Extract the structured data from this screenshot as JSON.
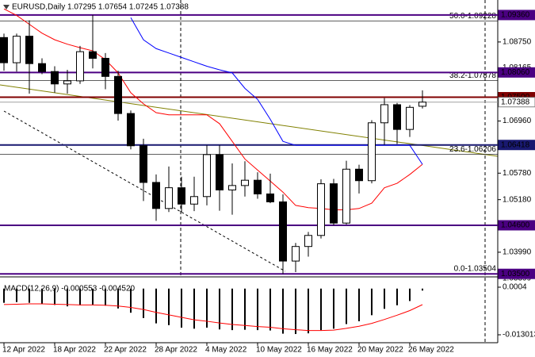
{
  "chart_data": [
    {
      "type": "candlestick",
      "title": "EURUSD,Daily  1.07295 1.07654 1.07245 1.07388",
      "categories": [
        "12 Apr 2022",
        null,
        null,
        null,
        "18 Apr 2022",
        null,
        null,
        null,
        "22 Apr 2022",
        null,
        null,
        null,
        "28 Apr 2022",
        null,
        null,
        null,
        "4 May 2022",
        null,
        null,
        null,
        "10 May 2022",
        null,
        null,
        null,
        "16 May 2022",
        null,
        null,
        null,
        "20 May 2022",
        null,
        null,
        null,
        "26 May 2022",
        null
      ],
      "open": [
        1.0885,
        1.0828,
        1.0888,
        1.0826,
        1.0808,
        1.078,
        1.0787,
        1.0853,
        1.0838,
        1.0797,
        1.0713,
        1.064,
        1.0557,
        1.0498,
        1.0545,
        1.0508,
        1.0525,
        1.062,
        1.054,
        1.055,
        1.0562,
        1.0531,
        1.0513,
        1.0379,
        1.0412,
        1.0437,
        1.0554,
        1.0465,
        1.0587,
        1.0561,
        1.0692,
        1.0733,
        1.0677,
        1.07295
      ],
      "high": [
        1.0894,
        1.0894,
        1.0924,
        1.0838,
        1.082,
        1.0812,
        1.0866,
        1.0936,
        1.085,
        1.081,
        1.072,
        1.0656,
        1.0575,
        1.0593,
        1.057,
        1.057,
        1.0641,
        1.0641,
        1.06,
        1.0605,
        1.058,
        1.0577,
        1.053,
        1.042,
        1.0445,
        1.0564,
        1.0565,
        1.0606,
        1.0597,
        1.0698,
        1.0748,
        1.0737,
        1.0732,
        1.07654
      ],
      "low": [
        1.081,
        1.0808,
        1.0758,
        1.0802,
        1.076,
        1.0758,
        1.078,
        1.0815,
        1.0768,
        1.0697,
        1.0632,
        1.0515,
        1.047,
        1.049,
        1.049,
        1.0492,
        1.0505,
        1.0493,
        1.0484,
        1.0525,
        1.052,
        1.051,
        1.035,
        1.0354,
        1.0389,
        1.043,
        1.046,
        1.0462,
        1.0532,
        1.0555,
        1.0642,
        1.0644,
        1.066,
        1.07245
      ],
      "close": [
        1.0828,
        1.0888,
        1.0826,
        1.0808,
        1.078,
        1.0787,
        1.0853,
        1.0838,
        1.0797,
        1.0713,
        1.064,
        1.0557,
        1.0498,
        1.0545,
        1.0508,
        1.0525,
        1.062,
        1.054,
        1.055,
        1.0562,
        1.0531,
        1.0513,
        1.0379,
        1.0412,
        1.0437,
        1.0554,
        1.0465,
        1.0587,
        1.0561,
        1.0692,
        1.0733,
        1.0677,
        1.0727,
        1.07388
      ],
      "series": [
        {
          "color": "#ff0000",
          "values": [
            1.095,
            1.0935,
            1.0915,
            1.0895,
            1.088,
            1.087,
            1.0862,
            1.0855,
            1.0835,
            1.0805,
            1.076,
            1.0735,
            1.0715,
            1.071,
            1.071,
            1.071,
            1.071,
            1.069,
            1.065,
            1.061,
            1.0585,
            1.056,
            1.0535,
            1.0505,
            1.05,
            1.0498,
            1.0495,
            1.0495,
            1.0498,
            1.051,
            1.0545,
            1.0555,
            1.0575,
            1.0598
          ]
        },
        {
          "color": "#0000ff",
          "values": [
            null,
            null,
            null,
            null,
            null,
            null,
            null,
            null,
            null,
            null,
            1.093,
            1.088,
            1.086,
            1.085,
            1.084,
            1.083,
            1.082,
            1.0812,
            1.0805,
            1.077,
            1.0745,
            1.07,
            1.065,
            1.0641,
            1.0641,
            1.0641,
            1.0641,
            1.0641,
            1.0641,
            1.0641,
            1.0641,
            1.0641,
            1.0641,
            1.0598
          ]
        }
      ],
      "ylim": [
        1.0345,
        1.097
      ],
      "yticks": [
        {
          "value": 1.0875,
          "label": "1.08750"
        },
        {
          "value": 1.08165,
          "label": "1.08165"
        },
        {
          "value": 1.0696,
          "label": "1.06960"
        },
        {
          "value": 1.0578,
          "label": "1.05780"
        },
        {
          "value": 1.0518,
          "label": "1.05180"
        },
        {
          "value": 1.0399,
          "label": "1.03990"
        },
        1.03399
      ],
      "levels": [
        {
          "value": 1.0936,
          "label": "1.09360",
          "color": "#4b0082"
        },
        {
          "value": 1.0806,
          "label": "1.08060",
          "color": "#4b0082"
        },
        {
          "value": 1.075,
          "label": "1.07500",
          "color": "#800000"
        },
        {
          "value": 1.07388,
          "label": "1.07388",
          "color": "#c0c0c0"
        },
        {
          "value": 1.06418,
          "label": "1.06418",
          "color": "#191970"
        },
        {
          "value": 1.046,
          "label": "1.04600",
          "color": "#4b0082"
        },
        {
          "value": 1.035,
          "label": "1.03500",
          "color": "#4b0082"
        }
      ],
      "annotations": [
        {
          "value": 1.09228,
          "label": "50.0-1.09228"
        },
        {
          "value": 1.07878,
          "label": "38.2-1.07878"
        },
        {
          "value": 1.06206,
          "label": "23.6-1.06206"
        },
        {
          "value": 1.03504,
          "label": "0.0-1.03504"
        }
      ]
    },
    {
      "type": "bar",
      "title": "MACD(12,26,9) -0.000553 -0.004520",
      "color": "#000000",
      "values": [
        -0.004,
        -0.0038,
        -0.004,
        -0.0042,
        -0.0046,
        -0.005,
        -0.0047,
        -0.0045,
        -0.0048,
        -0.0056,
        -0.0068,
        -0.0083,
        -0.0098,
        -0.0103,
        -0.011,
        -0.0113,
        -0.011,
        -0.0115,
        -0.0117,
        -0.0116,
        -0.0117,
        -0.0118,
        -0.0127,
        -0.0128,
        -0.0126,
        -0.0117,
        -0.0113,
        -0.01,
        -0.0092,
        -0.0075,
        -0.0057,
        -0.0047,
        -0.0035,
        -0.000553
      ],
      "series": [
        {
          "color": "#ff0000",
          "values": [
            -0.0045,
            -0.0044,
            -0.0043,
            -0.0043,
            -0.0044,
            -0.0045,
            -0.0046,
            -0.0046,
            -0.0047,
            -0.0049,
            -0.0053,
            -0.0059,
            -0.0067,
            -0.0074,
            -0.0081,
            -0.0088,
            -0.0092,
            -0.0097,
            -0.0101,
            -0.0104,
            -0.0107,
            -0.0109,
            -0.0113,
            -0.0116,
            -0.0118,
            -0.0118,
            -0.0117,
            -0.0112,
            -0.0106,
            -0.0098,
            -0.0087,
            -0.0075,
            -0.0062,
            -0.00452
          ]
        }
      ],
      "ylim": [
        -0.01525,
        0.00308
      ],
      "yticks": [
        {
          "value": 0.0004,
          "label": "0.0004"
        },
        -0.013013
      ]
    }
  ]
}
